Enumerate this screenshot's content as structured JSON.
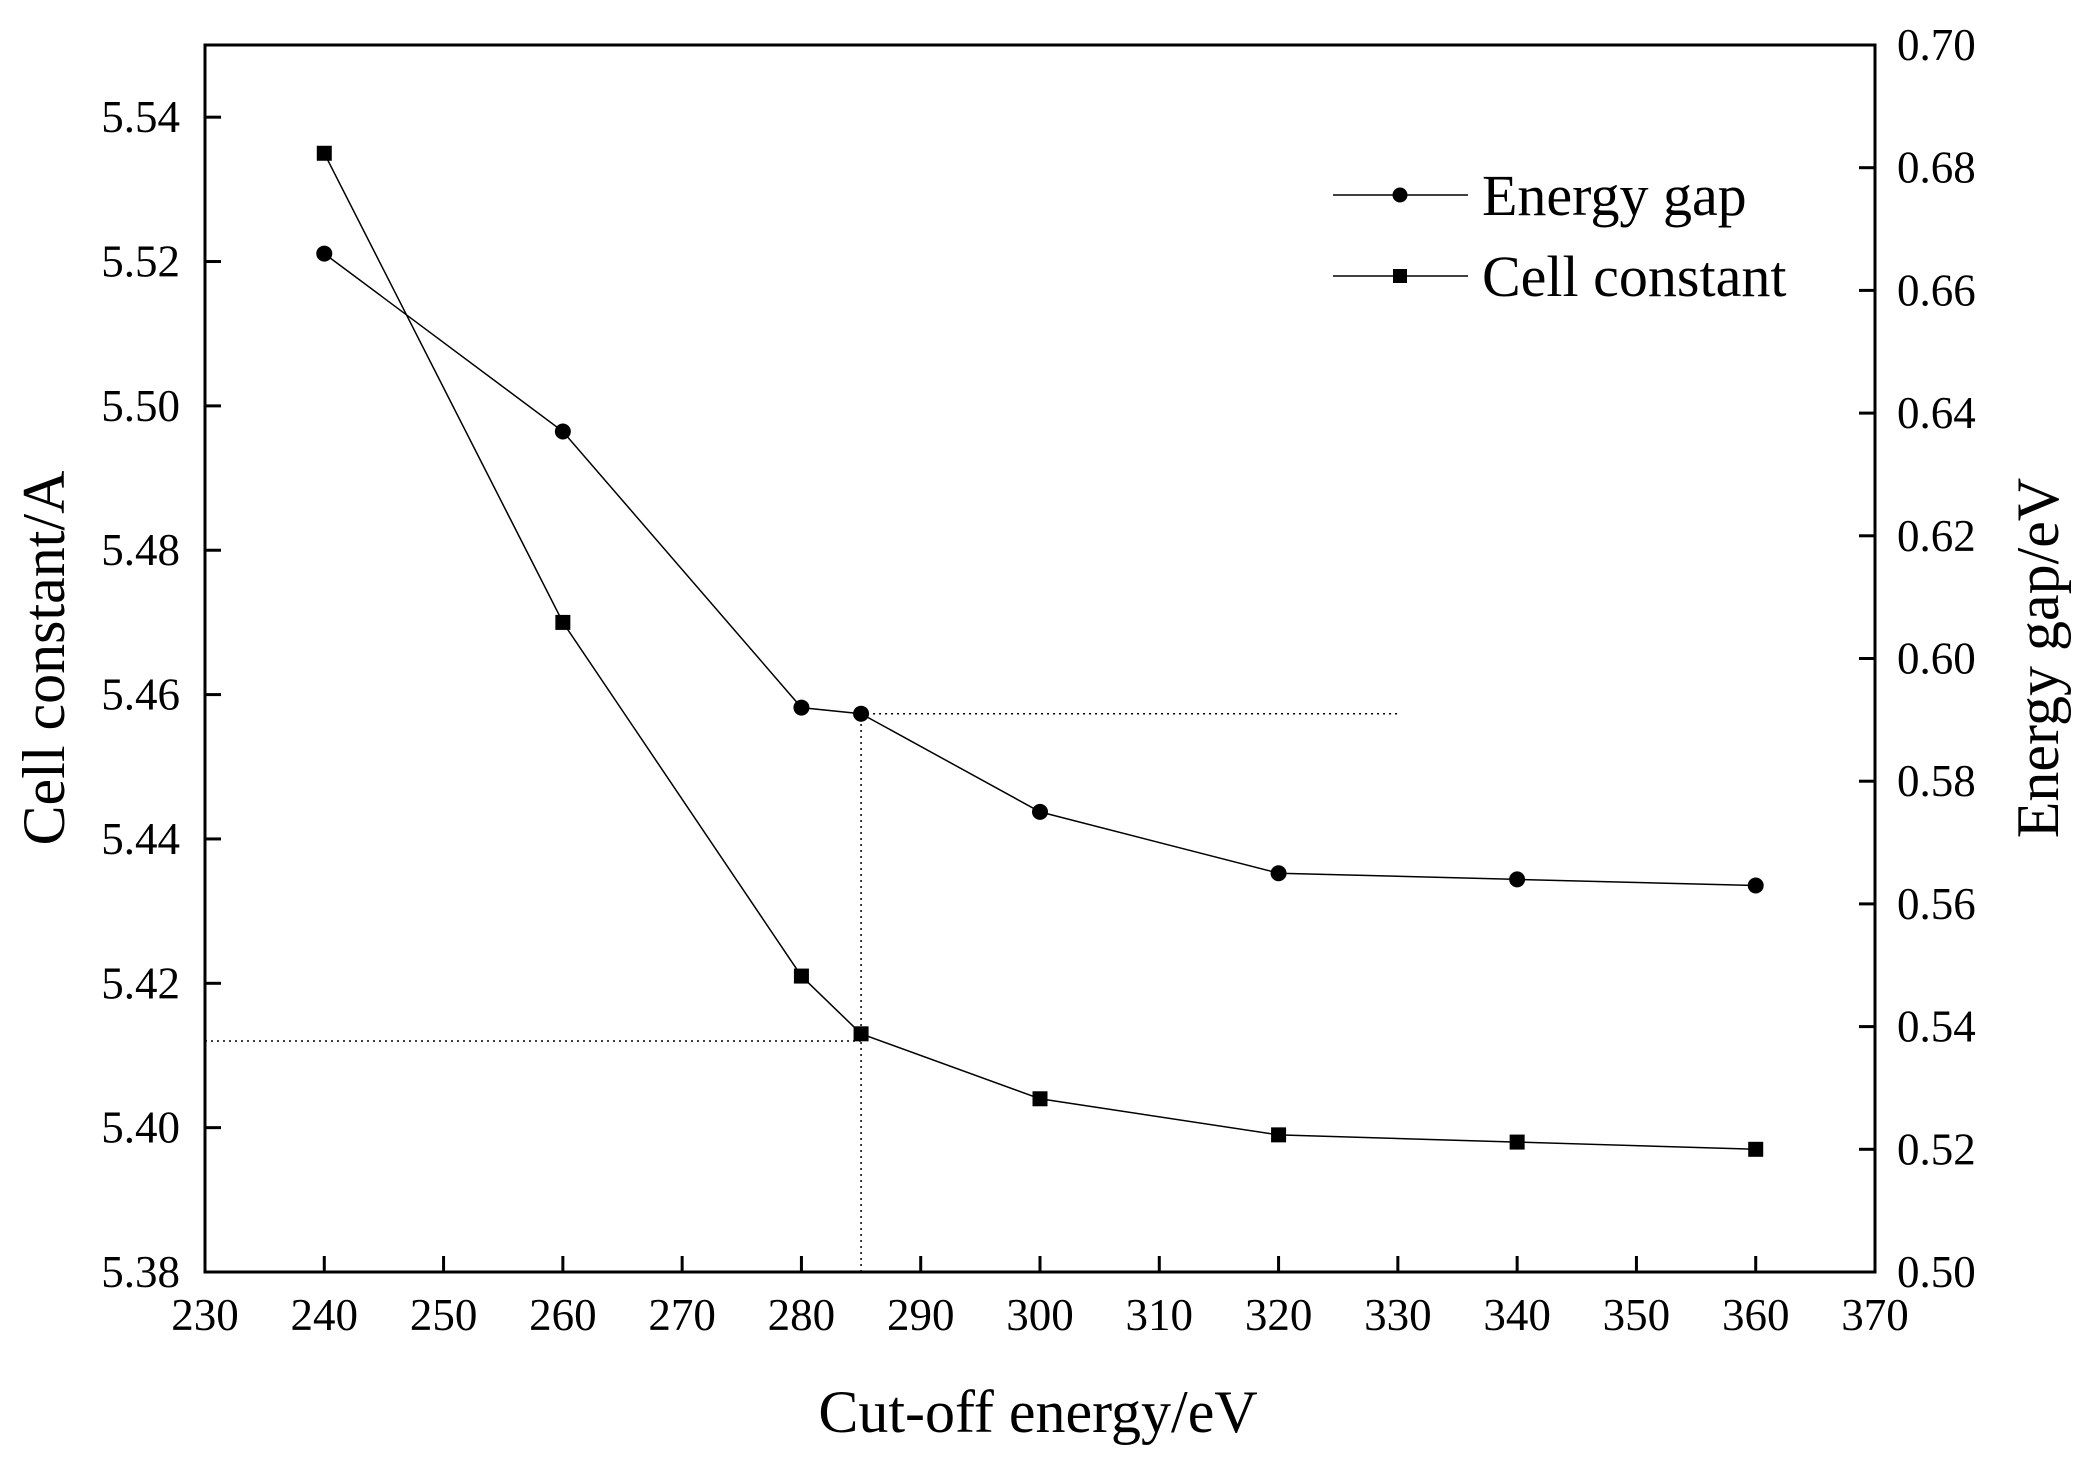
{
  "chart_data": {
    "type": "line",
    "title": "",
    "xlabel": "Cut-off energy/eV",
    "ylabel_left": "Cell constant/A",
    "ylabel_right": "Energy gap/eV",
    "xlim": [
      230,
      370
    ],
    "ylim_left": [
      5.38,
      5.55
    ],
    "ylim_right": [
      0.5,
      0.7
    ],
    "x_ticks": [
      230,
      240,
      250,
      260,
      270,
      280,
      290,
      300,
      310,
      320,
      330,
      340,
      350,
      360,
      370
    ],
    "x_tick_labels": [
      "230",
      "240",
      "250",
      "260",
      "270",
      "280",
      "290",
      "300",
      "310",
      "320",
      "330",
      "340",
      "350",
      "360",
      "370"
    ],
    "y_left_ticks": [
      5.38,
      5.4,
      5.42,
      5.44,
      5.46,
      5.48,
      5.5,
      5.52,
      5.54
    ],
    "y_left_tick_labels": [
      "5.38",
      "5.40",
      "5.42",
      "5.44",
      "5.46",
      "5.48",
      "5.50",
      "5.52",
      "5.54"
    ],
    "y_right_ticks": [
      0.5,
      0.52,
      0.54,
      0.56,
      0.58,
      0.6,
      0.62,
      0.64,
      0.66,
      0.68,
      0.7
    ],
    "y_right_tick_labels": [
      "0.50",
      "0.52",
      "0.54",
      "0.56",
      "0.58",
      "0.60",
      "0.62",
      "0.64",
      "0.66",
      "0.68",
      "0.70"
    ],
    "grid": false,
    "legend_position": "top-right",
    "series": [
      {
        "name": "Energy gap",
        "axis": "right",
        "marker": "circle",
        "x": [
          240,
          260,
          280,
          285,
          300,
          320,
          340,
          360
        ],
        "values": [
          0.666,
          0.637,
          0.592,
          0.591,
          0.575,
          0.565,
          0.564,
          0.563
        ]
      },
      {
        "name": "Cell constant",
        "axis": "left",
        "marker": "square",
        "x": [
          240,
          260,
          280,
          285,
          300,
          320,
          340,
          360
        ],
        "values": [
          5.535,
          5.47,
          5.421,
          5.413,
          5.404,
          5.399,
          5.398,
          5.397
        ]
      }
    ],
    "reference_lines": [
      {
        "name": "energy-gap-reference",
        "axis": "right",
        "y": 0.591,
        "x_from": 285,
        "x_to": 330
      },
      {
        "name": "cell-constant-reference",
        "axis": "left",
        "y": 5.412,
        "x_from": 230,
        "x_to": 285
      },
      {
        "name": "vertical-reference",
        "x": 285
      }
    ]
  }
}
